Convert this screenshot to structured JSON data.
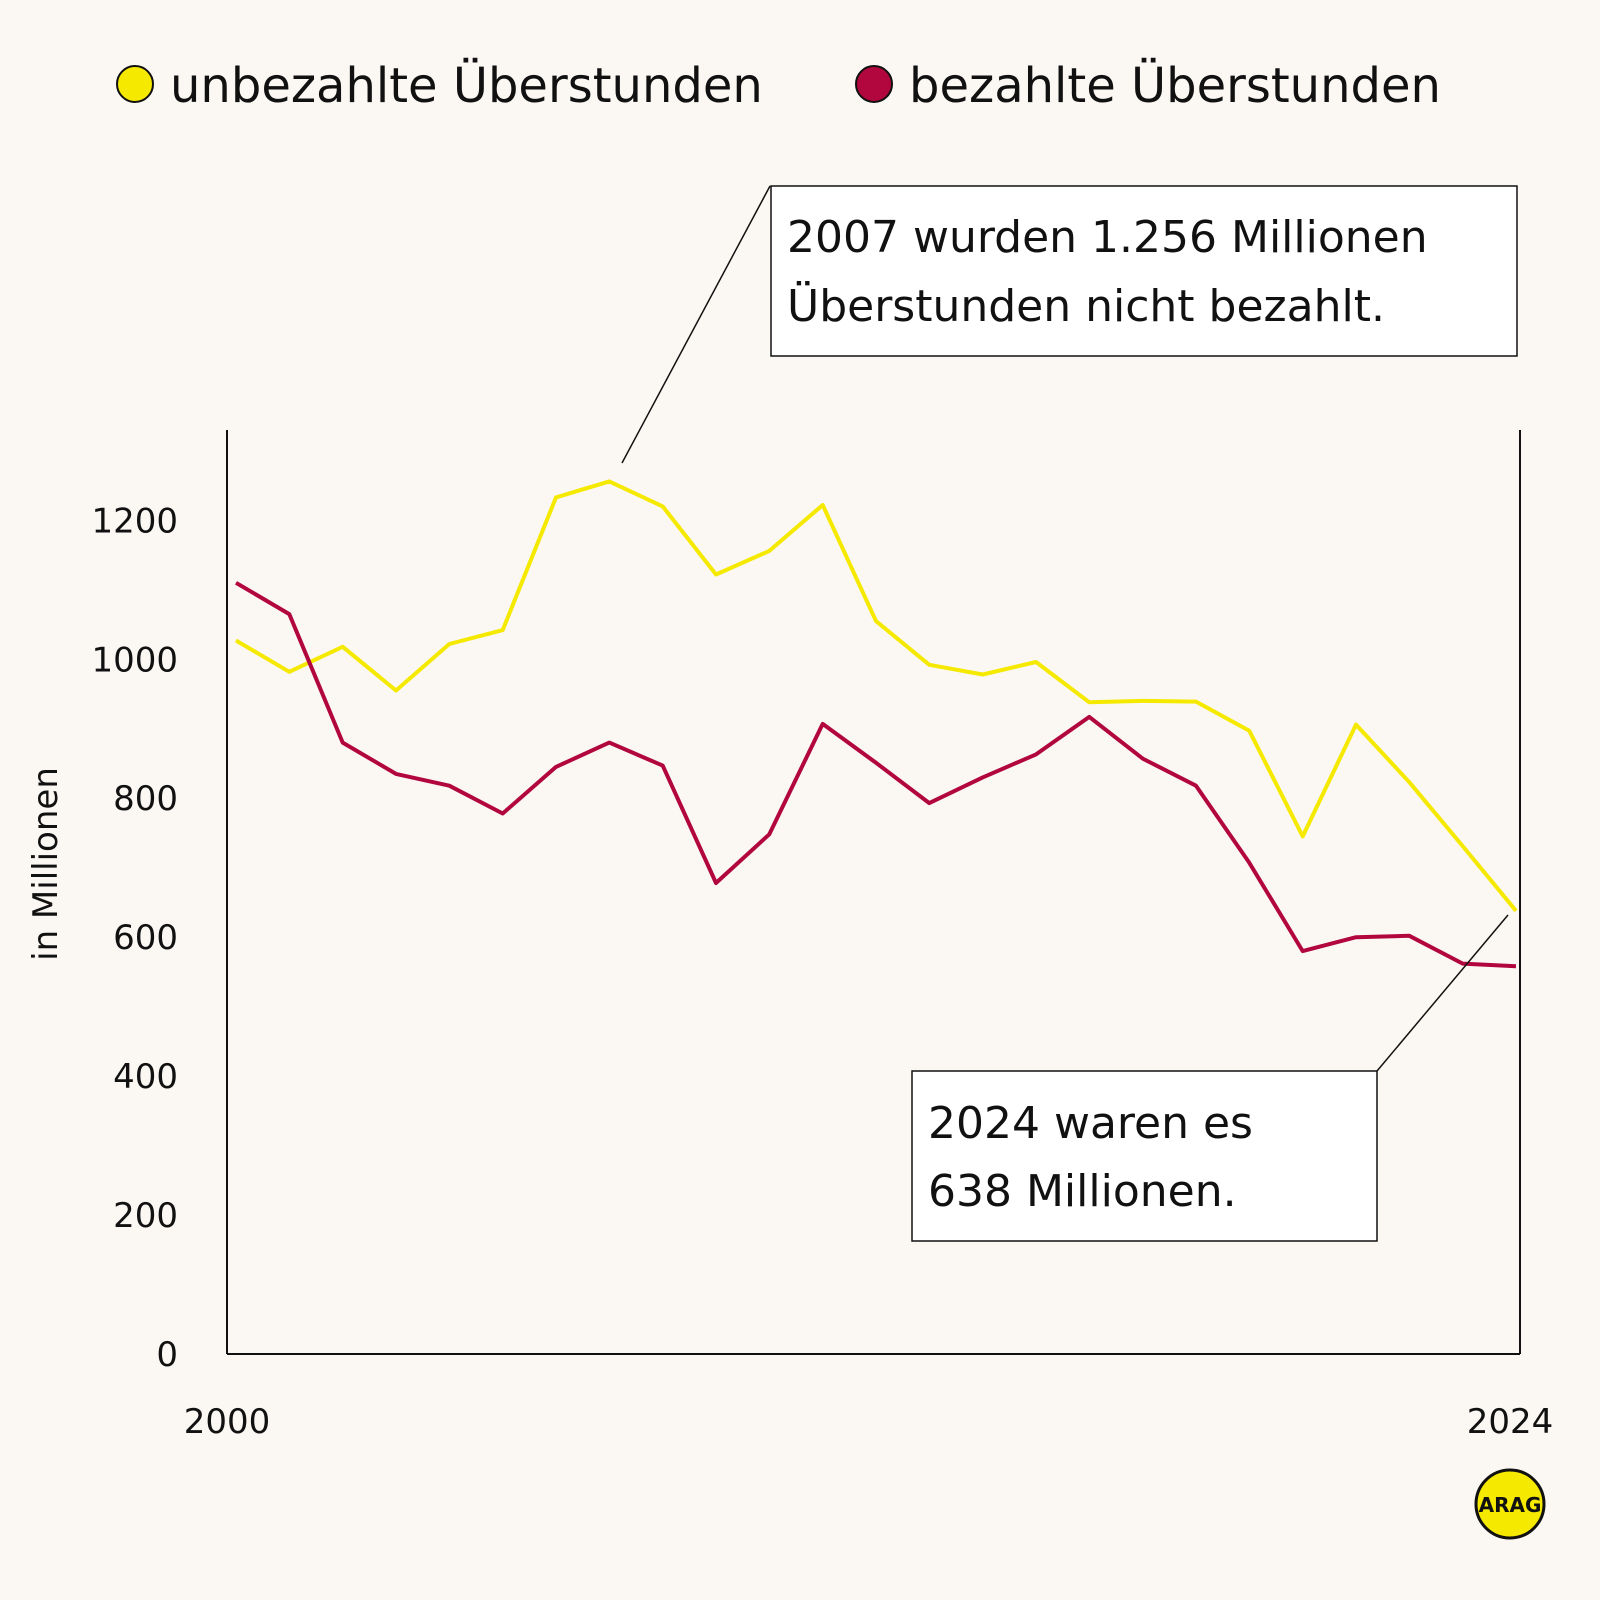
{
  "chart_data": {
    "type": "line",
    "title": "",
    "xlabel": "",
    "ylabel": "in Millionen",
    "x": [
      2000,
      2001,
      2002,
      2003,
      2004,
      2005,
      2006,
      2007,
      2008,
      2009,
      2010,
      2011,
      2012,
      2013,
      2014,
      2015,
      2016,
      2017,
      2018,
      2019,
      2020,
      2021,
      2022,
      2023,
      2024
    ],
    "x_tick_labels": [
      "2000",
      "2024"
    ],
    "ylim": [
      0,
      1330
    ],
    "y_ticks": [
      0,
      200,
      400,
      600,
      800,
      1000,
      1200
    ],
    "grid": false,
    "legend_position": "top",
    "series": [
      {
        "name": "unbezahlte Überstunden",
        "color": "#f5e900",
        "values": [
          1027,
          982,
          1018,
          955,
          1022,
          1042,
          1233,
          1256,
          1220,
          1122,
          1156,
          1222,
          1055,
          992,
          978,
          996,
          938,
          940,
          939,
          897,
          745,
          906,
          823,
          731,
          638
        ]
      },
      {
        "name": "bezahlte Überstunden",
        "color": "#b2063e",
        "values": [
          1110,
          1065,
          880,
          835,
          818,
          778,
          845,
          880,
          847,
          678,
          748,
          907,
          851,
          793,
          830,
          863,
          917,
          857,
          818,
          707,
          580,
          600,
          602,
          562,
          558
        ]
      }
    ],
    "annotations": [
      {
        "lines": [
          "2007 wurden 1.256 Millionen",
          "Überstunden nicht bezahlt."
        ],
        "x": 2007,
        "y": 1256
      },
      {
        "lines": [
          "2024 waren es",
          "638 Millionen."
        ],
        "x": 2024,
        "y": 638
      }
    ]
  },
  "legend": {
    "items": [
      {
        "label": "unbezahlte Überstunden",
        "color": "#f5e900"
      },
      {
        "label": "bezahlte Überstunden",
        "color": "#b2063e"
      }
    ]
  },
  "logo": {
    "text": "ARAG",
    "color": "#f5e900"
  }
}
